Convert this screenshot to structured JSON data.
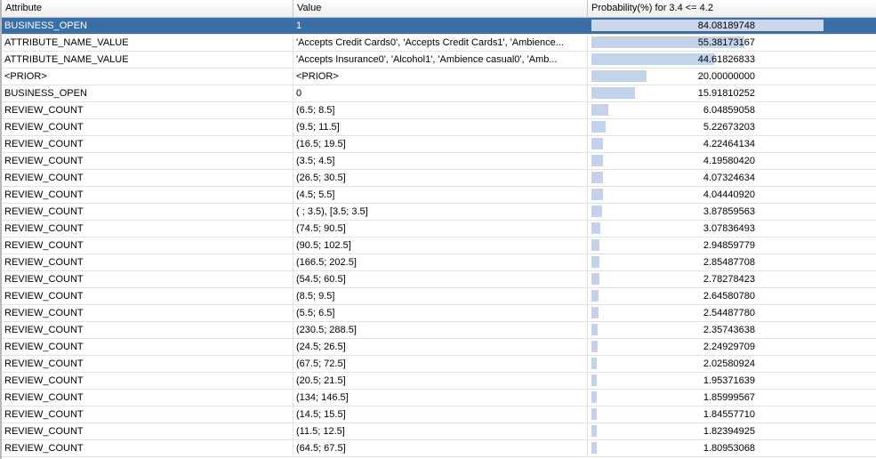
{
  "table": {
    "headers": {
      "attribute": "Attribute",
      "value": "Value",
      "probability": "Probability(%) for 3.4 <= 4.2"
    },
    "bar_color": "#c3d4ea",
    "selected_color": "#3a6ea5",
    "selected_row": 0,
    "rows": [
      {
        "attribute": "BUSINESS_OPEN",
        "value": "1",
        "probability": "84.08189748",
        "pct": 84.08189748
      },
      {
        "attribute": "ATTRIBUTE_NAME_VALUE",
        "value": "'Accepts Credit Cards0', 'Accepts Credit Cards1', 'Ambience...",
        "probability": "55.38173167",
        "pct": 55.38173167
      },
      {
        "attribute": "ATTRIBUTE_NAME_VALUE",
        "value": "'Accepts Insurance0', 'Alcohol1', 'Ambience casual0', 'Amb...",
        "probability": "44.61826833",
        "pct": 44.61826833
      },
      {
        "attribute": "<PRIOR>",
        "value": "<PRIOR>",
        "probability": "20.00000000",
        "pct": 20.0
      },
      {
        "attribute": "BUSINESS_OPEN",
        "value": "0",
        "probability": "15.91810252",
        "pct": 15.91810252
      },
      {
        "attribute": "REVIEW_COUNT",
        "value": "(6.5; 8.5]",
        "probability": "6.04859058",
        "pct": 6.04859058
      },
      {
        "attribute": "REVIEW_COUNT",
        "value": "(9.5; 11.5]",
        "probability": "5.22673203",
        "pct": 5.22673203
      },
      {
        "attribute": "REVIEW_COUNT",
        "value": "(16.5; 19.5]",
        "probability": "4.22464134",
        "pct": 4.22464134
      },
      {
        "attribute": "REVIEW_COUNT",
        "value": "(3.5; 4.5]",
        "probability": "4.19580420",
        "pct": 4.1958042
      },
      {
        "attribute": "REVIEW_COUNT",
        "value": "(26.5; 30.5]",
        "probability": "4.07324634",
        "pct": 4.07324634
      },
      {
        "attribute": "REVIEW_COUNT",
        "value": "(4.5; 5.5]",
        "probability": "4.04440920",
        "pct": 4.0444092
      },
      {
        "attribute": "REVIEW_COUNT",
        "value": "( ; 3.5), [3.5; 3.5]",
        "probability": "3.87859563",
        "pct": 3.87859563
      },
      {
        "attribute": "REVIEW_COUNT",
        "value": "(74.5; 90.5]",
        "probability": "3.07836493",
        "pct": 3.07836493
      },
      {
        "attribute": "REVIEW_COUNT",
        "value": "(90.5; 102.5]",
        "probability": "2.94859779",
        "pct": 2.94859779
      },
      {
        "attribute": "REVIEW_COUNT",
        "value": "(166.5; 202.5]",
        "probability": "2.85487708",
        "pct": 2.85487708
      },
      {
        "attribute": "REVIEW_COUNT",
        "value": "(54.5; 60.5]",
        "probability": "2.78278423",
        "pct": 2.78278423
      },
      {
        "attribute": "REVIEW_COUNT",
        "value": "(8.5; 9.5]",
        "probability": "2.64580780",
        "pct": 2.6458078
      },
      {
        "attribute": "REVIEW_COUNT",
        "value": "(5.5; 6.5]",
        "probability": "2.54487780",
        "pct": 2.5448778
      },
      {
        "attribute": "REVIEW_COUNT",
        "value": "(230.5; 288.5]",
        "probability": "2.35743638",
        "pct": 2.35743638
      },
      {
        "attribute": "REVIEW_COUNT",
        "value": "(24.5; 26.5]",
        "probability": "2.24929709",
        "pct": 2.24929709
      },
      {
        "attribute": "REVIEW_COUNT",
        "value": "(67.5; 72.5]",
        "probability": "2.02580924",
        "pct": 2.02580924
      },
      {
        "attribute": "REVIEW_COUNT",
        "value": "(20.5; 21.5]",
        "probability": "1.95371639",
        "pct": 1.95371639
      },
      {
        "attribute": "REVIEW_COUNT",
        "value": "(134; 146.5]",
        "probability": "1.85999567",
        "pct": 1.85999567
      },
      {
        "attribute": "REVIEW_COUNT",
        "value": "(14.5; 15.5]",
        "probability": "1.84557710",
        "pct": 1.8455771
      },
      {
        "attribute": "REVIEW_COUNT",
        "value": "(11.5; 12.5]",
        "probability": "1.82394925",
        "pct": 1.82394925
      },
      {
        "attribute": "REVIEW_COUNT",
        "value": "(64.5; 67.5]",
        "probability": "1.80953068",
        "pct": 1.80953068
      }
    ]
  }
}
